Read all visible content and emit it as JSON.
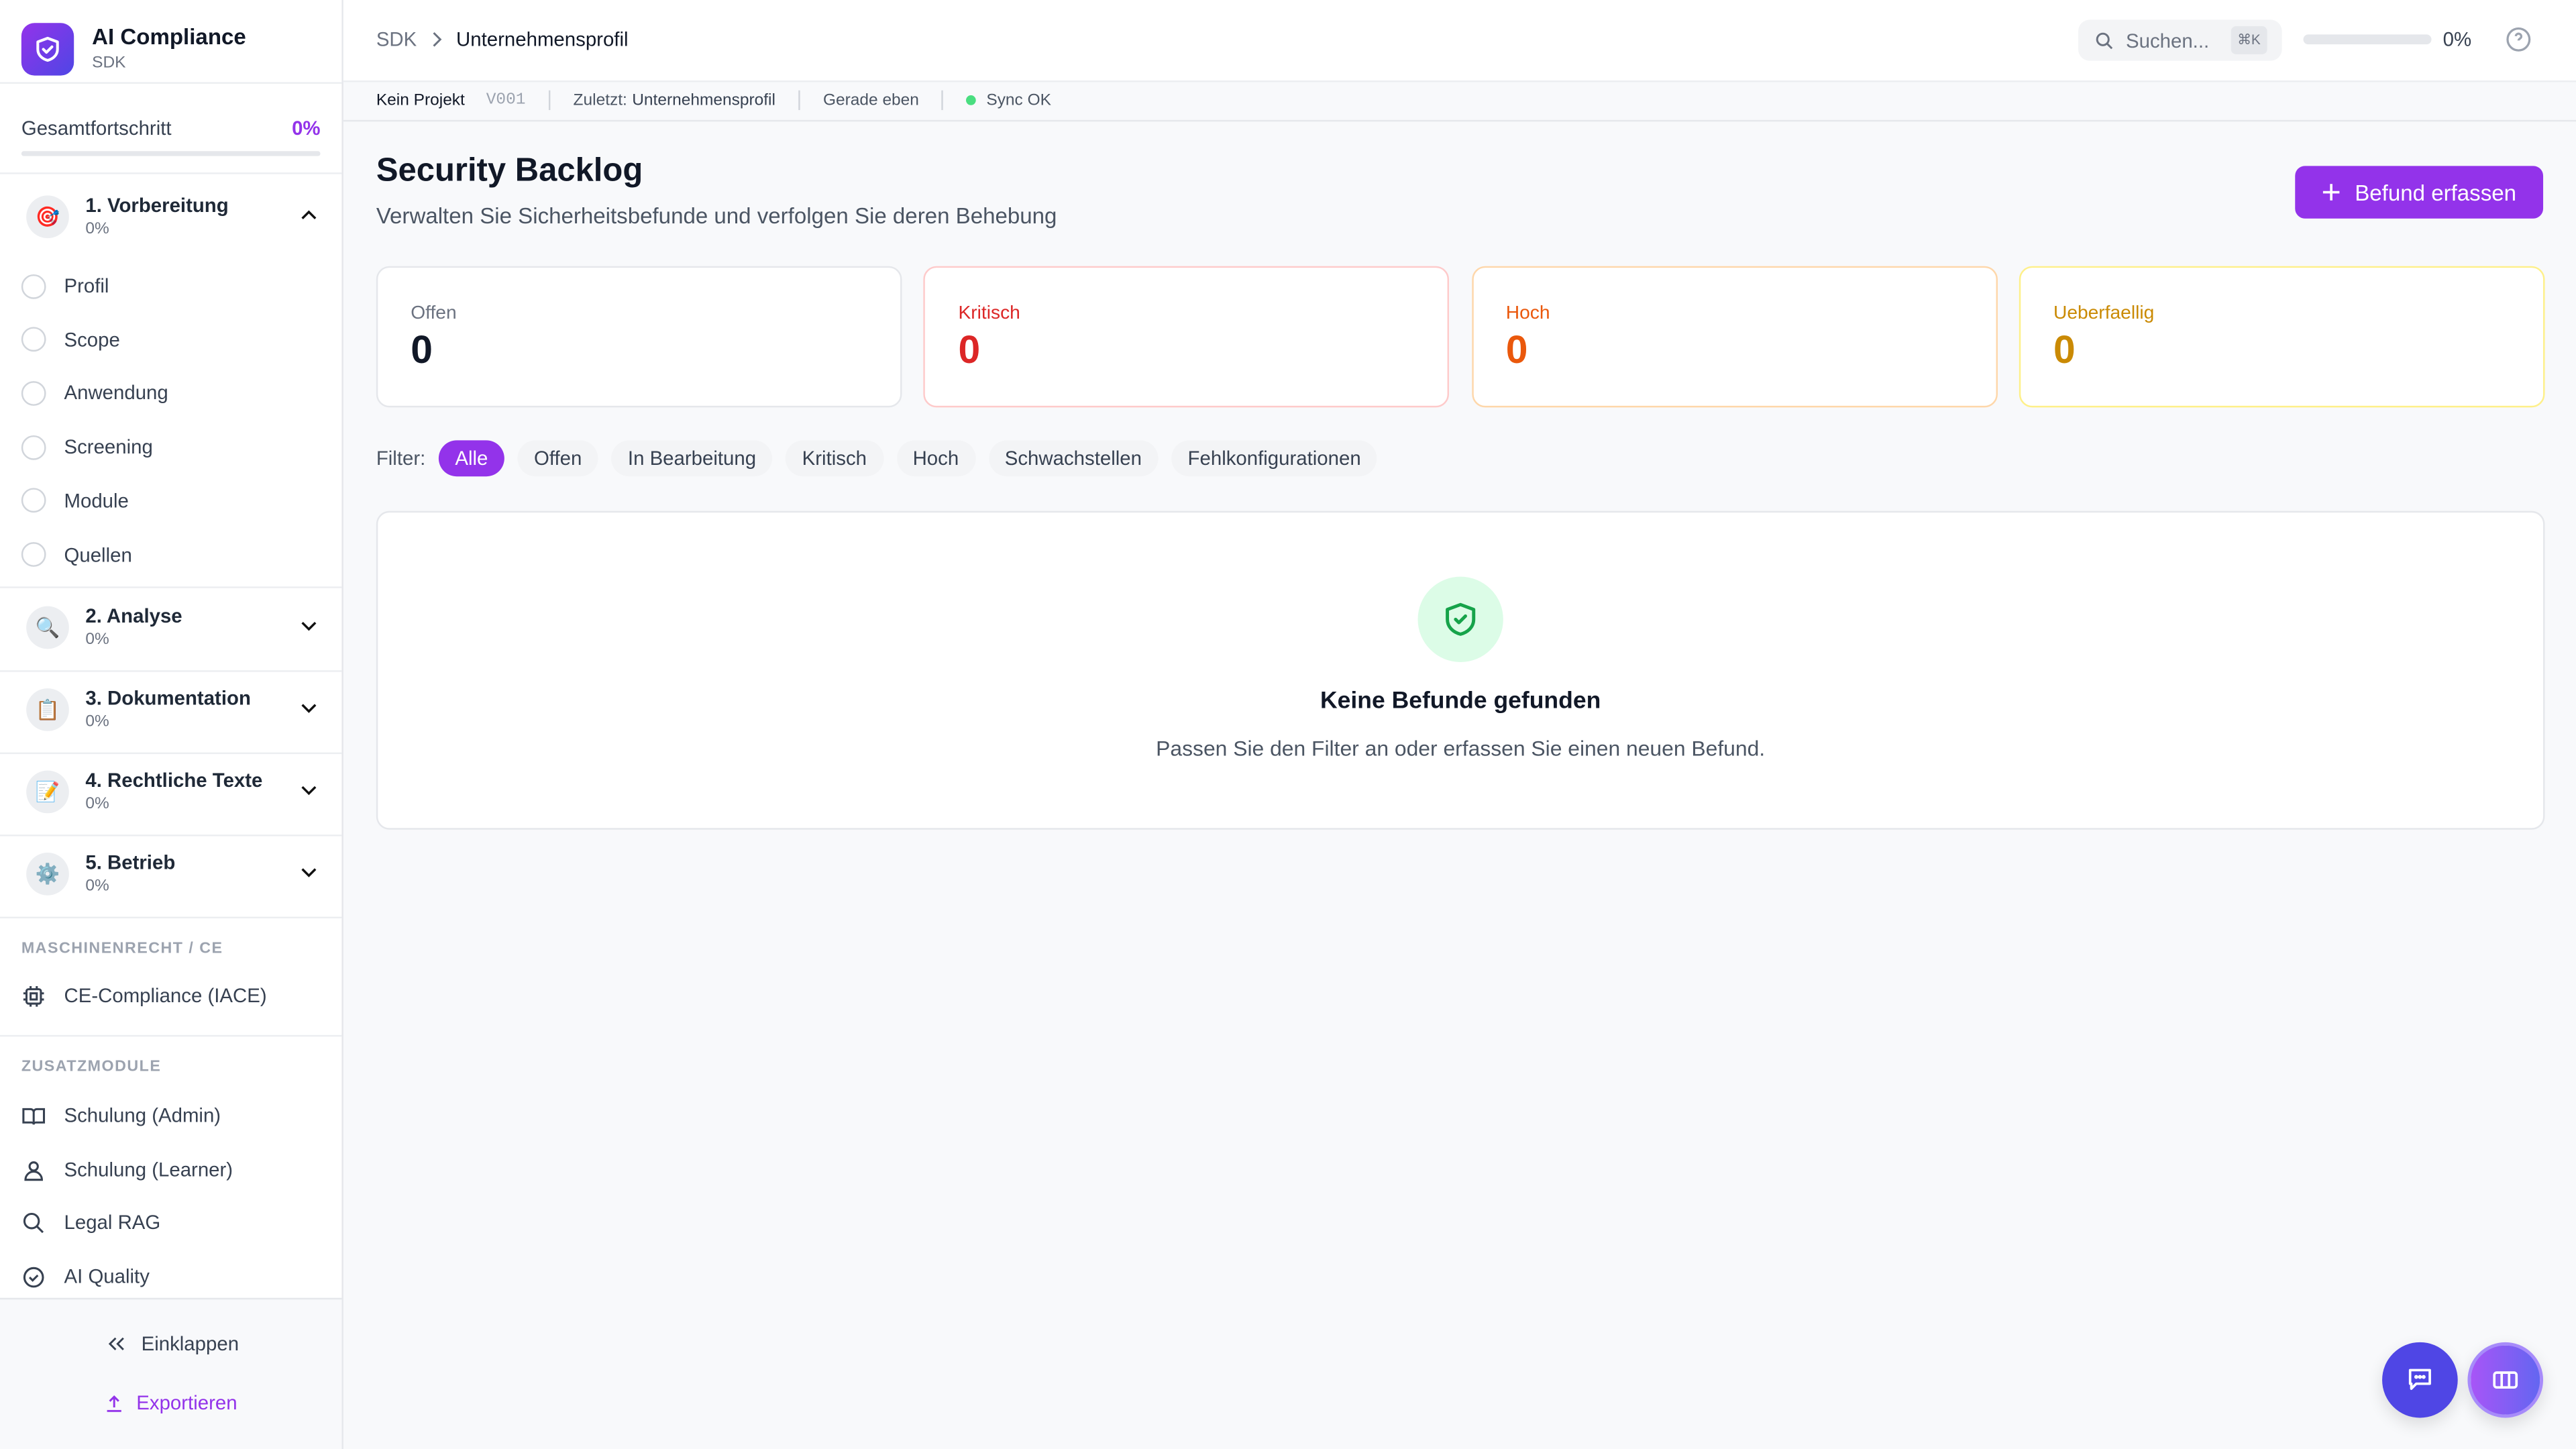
{
  "brand": {
    "title": "AI Compliance",
    "subtitle": "SDK"
  },
  "progress": {
    "label": "Gesamtfortschritt",
    "value_text": "0%",
    "value": 0
  },
  "phases": [
    {
      "title": "1. Vorbereitung",
      "percent": "0%",
      "icon": "target-icon",
      "expanded": true,
      "items": [
        "Profil",
        "Scope",
        "Anwendung",
        "Screening",
        "Module",
        "Quellen"
      ]
    },
    {
      "title": "2. Analyse",
      "percent": "0%",
      "icon": "magnifier-icon"
    },
    {
      "title": "3. Dokumentation",
      "percent": "0%",
      "icon": "clipboard-icon"
    },
    {
      "title": "4. Rechtliche Texte",
      "percent": "0%",
      "icon": "memo-icon"
    },
    {
      "title": "5. Betrieb",
      "percent": "0%",
      "icon": "gear-icon"
    }
  ],
  "sections": [
    {
      "label": "MASCHINENRECHT / CE",
      "items": [
        {
          "label": "CE-Compliance (IACE)",
          "icon": "chip-icon"
        }
      ]
    },
    {
      "label": "ZUSATZMODULE",
      "items": [
        {
          "label": "Schulung (Admin)",
          "icon": "book-icon"
        },
        {
          "label": "Schulung (Learner)",
          "icon": "user-icon"
        },
        {
          "label": "Legal RAG",
          "icon": "search-icon"
        },
        {
          "label": "AI Quality",
          "icon": "check-circle-icon"
        }
      ]
    }
  ],
  "footer": {
    "collapse": "Einklappen",
    "export": "Exportieren"
  },
  "header": {
    "breadcrumb_root": "SDK",
    "breadcrumb_current": "Unternehmensprofil",
    "search_placeholder": "Suchen...",
    "search_shortcut": "⌘K",
    "progress_text": "0%",
    "progress": 0
  },
  "statusbar": {
    "project": "Kein Projekt",
    "version": "V001",
    "last_prefix": "Zuletzt:",
    "last_value": "Unternehmensprofil",
    "time": "Gerade eben",
    "sync": "Sync OK"
  },
  "page": {
    "title": "Security Backlog",
    "subtitle": "Verwalten Sie Sicherheitsbefunde und verfolgen Sie deren Behebung",
    "add_button": "Befund erfassen"
  },
  "stats": [
    {
      "label": "Offen",
      "value": "0",
      "color": "#6b7280",
      "value_color": "#111827",
      "border": "#e5e7eb"
    },
    {
      "label": "Kritisch",
      "value": "0",
      "color": "#dc2626",
      "value_color": "#dc2626",
      "border": "#fecaca"
    },
    {
      "label": "Hoch",
      "value": "0",
      "color": "#ea580c",
      "value_color": "#ea580c",
      "border": "#fed7aa"
    },
    {
      "label": "Ueberfaellig",
      "value": "0",
      "color": "#ca8a04",
      "value_color": "#ca8a04",
      "border": "#fef08a"
    }
  ],
  "filter": {
    "label": "Filter:",
    "options": [
      "Alle",
      "Offen",
      "In Bearbeitung",
      "Kritisch",
      "Hoch",
      "Schwachstellen",
      "Fehlkonfigurationen"
    ],
    "active": "Alle"
  },
  "empty": {
    "title": "Keine Befunde gefunden",
    "text": "Passen Sie den Filter an oder erfassen Sie einen neuen Befund."
  },
  "colors": {
    "accent": "#9333ea",
    "success": "#16a34a",
    "chat": "#4f46e5"
  }
}
